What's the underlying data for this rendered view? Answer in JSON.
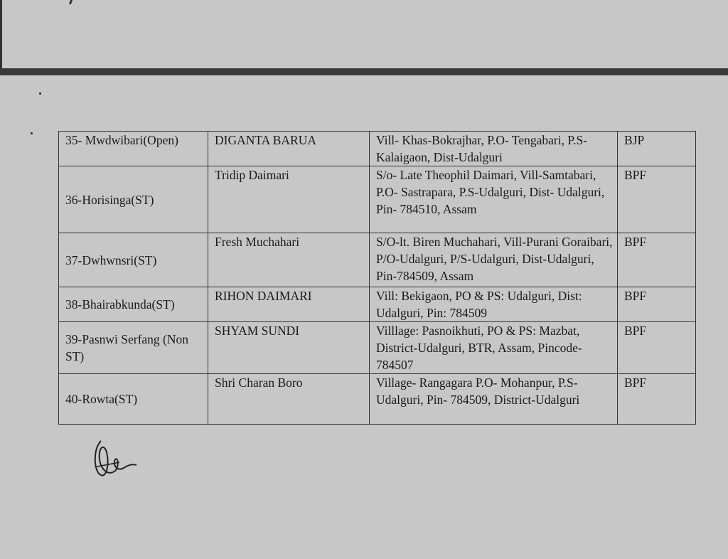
{
  "table": {
    "rows": [
      {
        "constituency": "35- Mwdwibari(Open)",
        "candidate": "DIGANTA BARUA",
        "address": "Vill- Khas-Bokrajhar, P.O- Tengabari, P.S- Kalaigaon, Dist-Udalguri",
        "party": "BJP"
      },
      {
        "constituency": "36-Horisinga(ST)",
        "candidate": "Tridip Daimari",
        "address": "S/o- Late  Theophil Daimari, Vill-Samtabari, P.O- Sastrapara, P.S-Udalguri, Dist- Udalguri, Pin- 784510, Assam",
        "party": "BPF"
      },
      {
        "constituency": "37-Dwhwnsri(ST)",
        "candidate": "Fresh Muchahari",
        "address": "S/O-lt. Biren Muchahari, Vill-Purani Goraibari, P/O-Udalguri, P/S-Udalguri, Dist-Udalguri, Pin-784509, Assam",
        "party": "BPF"
      },
      {
        "constituency": "38-Bhairabkunda(ST)",
        "candidate": "RIHON DAIMARI",
        "address": "Vill: Bekigaon, PO & PS: Udalguri, Dist: Udalguri, Pin: 784509",
        "party": "BPF"
      },
      {
        "constituency": "39-Pasnwi Serfang (Non ST)",
        "candidate": "SHYAM SUNDI",
        "address": "Villlage: Pasnoikhuti, PO & PS: Mazbat, District-Udalguri, BTR, Assam, Pincode-784507",
        "party": "BPF"
      },
      {
        "constituency": "40-Rowta(ST)",
        "candidate": "Shri Charan Boro",
        "address": "Village- Rangagara P.O- Mohanpur, P.S- Udalguri, Pin- 784509, District-Udalguri",
        "party": "BPF"
      }
    ]
  },
  "signature": "handwritten signature"
}
